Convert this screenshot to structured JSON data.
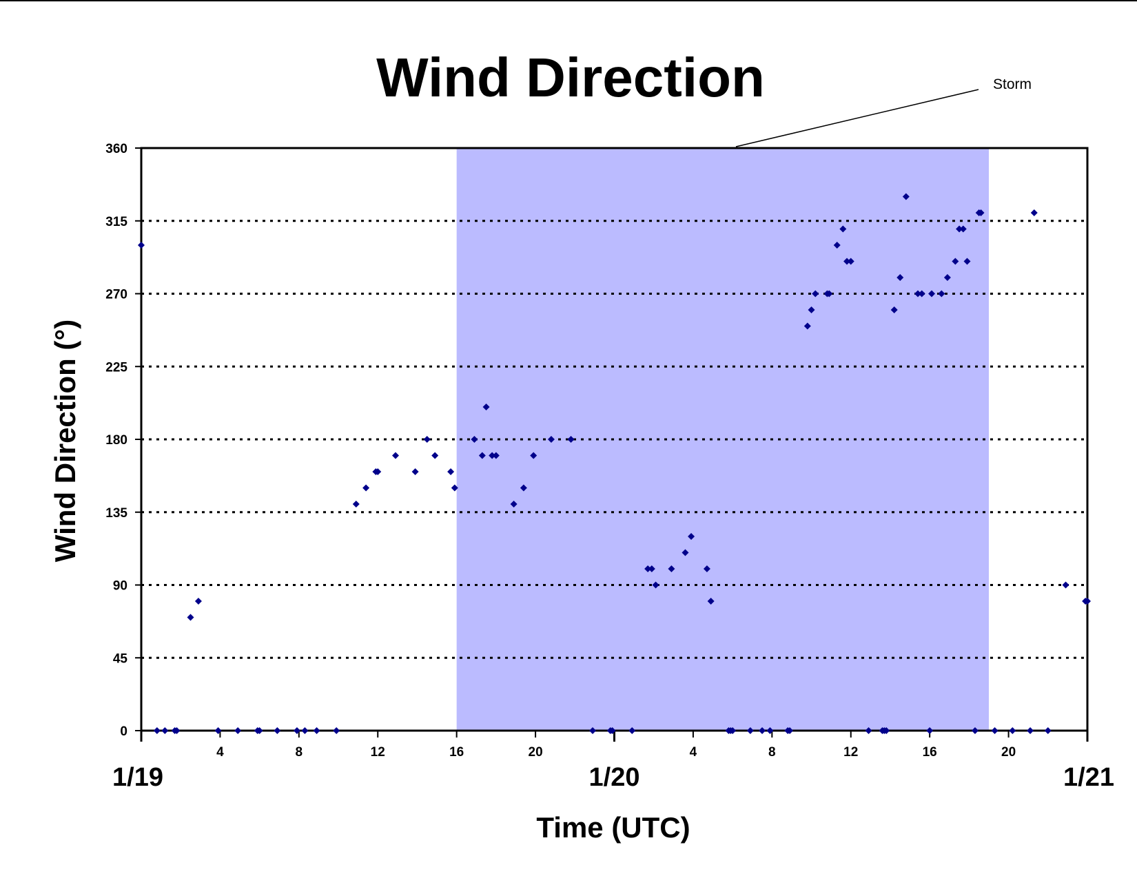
{
  "chart_data": {
    "type": "scatter",
    "title": "Wind Direction",
    "xlabel": "Time (UTC)",
    "ylabel": "Wind Direction (°)",
    "ylim": [
      0,
      360
    ],
    "y_ticks": [
      "0",
      "45",
      "90",
      "135",
      "180",
      "225",
      "270",
      "315",
      "360"
    ],
    "xlim_hours": [
      0,
      48
    ],
    "x_hour_ticks": [
      {
        "hour": 4,
        "label": "4"
      },
      {
        "hour": 8,
        "label": "8"
      },
      {
        "hour": 12,
        "label": "12"
      },
      {
        "hour": 16,
        "label": "16"
      },
      {
        "hour": 20,
        "label": "20"
      },
      {
        "hour": 28,
        "label": "4"
      },
      {
        "hour": 32,
        "label": "8"
      },
      {
        "hour": 36,
        "label": "12"
      },
      {
        "hour": 40,
        "label": "16"
      },
      {
        "hour": 44,
        "label": "20"
      }
    ],
    "date_labels": [
      {
        "hour": 0,
        "label": "1/19"
      },
      {
        "hour": 24,
        "label": "1/20"
      },
      {
        "hour": 48,
        "label": "1/21"
      }
    ],
    "grid": "horizontal dotted",
    "marker_color": "#00008b",
    "shaded_region": {
      "start_hour": 16,
      "end_hour": 43,
      "color": "#bbbbff",
      "label": "Storm"
    },
    "series": [
      {
        "points": [
          [
            0,
            300
          ],
          [
            0.8,
            0
          ],
          [
            1.2,
            0
          ],
          [
            1.7,
            0
          ],
          [
            1.8,
            0
          ],
          [
            2.5,
            70
          ],
          [
            2.9,
            80
          ],
          [
            3.9,
            0
          ],
          [
            4.9,
            0
          ],
          [
            5.9,
            0
          ],
          [
            6.0,
            0
          ],
          [
            6.9,
            0
          ],
          [
            7.9,
            0
          ],
          [
            8.3,
            0
          ],
          [
            8.9,
            0
          ],
          [
            9.9,
            0
          ],
          [
            10.9,
            140
          ],
          [
            11.4,
            150
          ],
          [
            11.9,
            160
          ],
          [
            12.0,
            160
          ],
          [
            12.9,
            170
          ],
          [
            13.9,
            160
          ],
          [
            14.5,
            180
          ],
          [
            14.9,
            170
          ],
          [
            15.7,
            160
          ],
          [
            15.9,
            150
          ],
          [
            16.9,
            180
          ],
          [
            17.3,
            170
          ],
          [
            17.5,
            200
          ],
          [
            17.8,
            170
          ],
          [
            18.0,
            170
          ],
          [
            18.9,
            140
          ],
          [
            19.4,
            150
          ],
          [
            19.9,
            170
          ],
          [
            20.8,
            180
          ],
          [
            21.8,
            180
          ],
          [
            22.9,
            0
          ],
          [
            23.8,
            0
          ],
          [
            23.9,
            0
          ],
          [
            24.9,
            0
          ],
          [
            25.7,
            100
          ],
          [
            25.9,
            100
          ],
          [
            26.1,
            90
          ],
          [
            26.9,
            100
          ],
          [
            27.6,
            110
          ],
          [
            27.9,
            120
          ],
          [
            28.7,
            100
          ],
          [
            28.9,
            80
          ],
          [
            29.8,
            0
          ],
          [
            29.9,
            0
          ],
          [
            30.0,
            0
          ],
          [
            30.9,
            0
          ],
          [
            31.5,
            0
          ],
          [
            31.9,
            0
          ],
          [
            32.8,
            0
          ],
          [
            32.9,
            0
          ],
          [
            33.8,
            250
          ],
          [
            34.0,
            260
          ],
          [
            34.2,
            270
          ],
          [
            34.8,
            270
          ],
          [
            34.9,
            270
          ],
          [
            35.3,
            300
          ],
          [
            35.6,
            310
          ],
          [
            35.8,
            290
          ],
          [
            36.0,
            290
          ],
          [
            36.9,
            0
          ],
          [
            37.6,
            0
          ],
          [
            37.7,
            0
          ],
          [
            37.8,
            0
          ],
          [
            38.2,
            260
          ],
          [
            38.5,
            280
          ],
          [
            38.8,
            330
          ],
          [
            39.4,
            270
          ],
          [
            39.6,
            270
          ],
          [
            40.0,
            0
          ],
          [
            40.1,
            270
          ],
          [
            40.6,
            270
          ],
          [
            40.9,
            280
          ],
          [
            41.3,
            290
          ],
          [
            41.5,
            310
          ],
          [
            41.7,
            310
          ],
          [
            41.9,
            290
          ],
          [
            42.3,
            0
          ],
          [
            42.5,
            320
          ],
          [
            42.6,
            320
          ],
          [
            43.3,
            0
          ],
          [
            44.2,
            0
          ],
          [
            45.1,
            0
          ],
          [
            45.3,
            320
          ],
          [
            46.0,
            0
          ],
          [
            46.9,
            90
          ],
          [
            47.9,
            80
          ],
          [
            48.0,
            80
          ]
        ]
      }
    ]
  }
}
